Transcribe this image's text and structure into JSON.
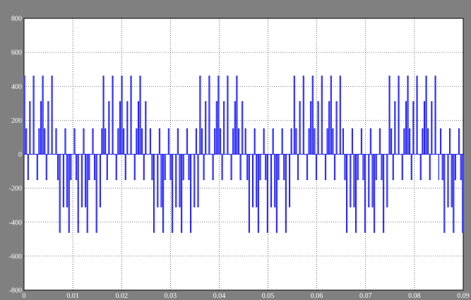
{
  "chart_data": {
    "type": "line",
    "title": "",
    "xlabel": "",
    "ylabel": "",
    "xlim": [
      0,
      0.09
    ],
    "ylim": [
      -800,
      800
    ],
    "grid": true,
    "x_ticks": [
      {
        "value": 0,
        "label": "0"
      },
      {
        "value": 0.01,
        "label": "0.01"
      },
      {
        "value": 0.02,
        "label": "0.02"
      },
      {
        "value": 0.03,
        "label": "0.03"
      },
      {
        "value": 0.04,
        "label": "0.04"
      },
      {
        "value": 0.05,
        "label": "0.05"
      },
      {
        "value": 0.06,
        "label": "0.06"
      },
      {
        "value": 0.07,
        "label": "0.07"
      },
      {
        "value": 0.08,
        "label": "0.08"
      },
      {
        "value": 0.09,
        "label": "0.09"
      }
    ],
    "y_ticks": [
      {
        "value": 800,
        "label": "800"
      },
      {
        "value": 600,
        "label": "600"
      },
      {
        "value": 400,
        "label": "400"
      },
      {
        "value": 200,
        "label": "200"
      },
      {
        "value": 0,
        "label": "0"
      },
      {
        "value": -200,
        "label": "-200"
      },
      {
        "value": -400,
        "label": "-400"
      },
      {
        "value": -600,
        "label": "-600"
      },
      {
        "value": -800,
        "label": "-800"
      }
    ],
    "series": [
      {
        "color": "#1a1aff",
        "segments": [
          {
            "x_start": 0.0,
            "x_end": 0.0062,
            "levels": [
              460,
              310,
              150,
              0,
              -150
            ]
          },
          {
            "x_start": 0.0062,
            "x_end": 0.0065,
            "levels": [
              0
            ]
          },
          {
            "x_start": 0.0065,
            "x_end": 0.016,
            "levels": [
              150,
              0,
              -150,
              -310,
              -460
            ]
          },
          {
            "x_start": 0.016,
            "x_end": 0.0162,
            "levels": [
              0
            ]
          },
          {
            "x_start": 0.0162,
            "x_end": 0.0255,
            "levels": [
              460,
              310,
              150,
              0,
              -150
            ]
          },
          {
            "x_start": 0.0255,
            "x_end": 0.0258,
            "levels": [
              0
            ]
          },
          {
            "x_start": 0.0258,
            "x_end": 0.0358,
            "levels": [
              150,
              0,
              -150,
              -310,
              -460
            ]
          },
          {
            "x_start": 0.0358,
            "x_end": 0.036,
            "levels": [
              0
            ]
          },
          {
            "x_start": 0.036,
            "x_end": 0.045,
            "levels": [
              460,
              310,
              150,
              0,
              -150
            ]
          },
          {
            "x_start": 0.045,
            "x_end": 0.0453,
            "levels": [
              0
            ]
          },
          {
            "x_start": 0.0453,
            "x_end": 0.055,
            "levels": [
              150,
              0,
              -150,
              -310,
              -460
            ]
          },
          {
            "x_start": 0.055,
            "x_end": 0.0553,
            "levels": [
              0
            ]
          },
          {
            "x_start": 0.0553,
            "x_end": 0.065,
            "levels": [
              460,
              310,
              150,
              0,
              -150
            ]
          },
          {
            "x_start": 0.065,
            "x_end": 0.0653,
            "levels": [
              0
            ]
          },
          {
            "x_start": 0.0653,
            "x_end": 0.0745,
            "levels": [
              150,
              0,
              -150,
              -310,
              -460
            ]
          },
          {
            "x_start": 0.0745,
            "x_end": 0.0748,
            "levels": [
              0
            ]
          },
          {
            "x_start": 0.0748,
            "x_end": 0.085,
            "levels": [
              460,
              310,
              150,
              0,
              -150
            ]
          },
          {
            "x_start": 0.085,
            "x_end": 0.0853,
            "levels": [
              0
            ]
          },
          {
            "x_start": 0.0853,
            "x_end": 0.09,
            "levels": [
              150,
              0,
              -150,
              -310,
              -460
            ]
          }
        ]
      }
    ]
  },
  "colors": {
    "frame": "#808080",
    "plot_background": "#ffffff",
    "grid": "#000000",
    "trace": "#1a1aff",
    "tick_label": "#ffffff"
  }
}
